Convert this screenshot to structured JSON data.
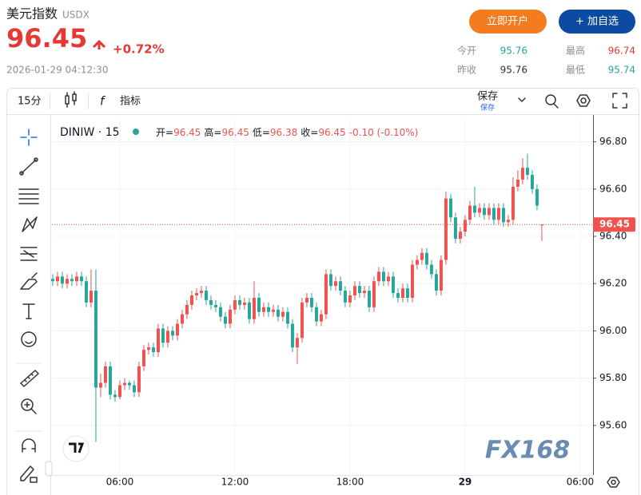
{
  "header": {
    "title": "美元指数",
    "symbol": "USDX",
    "price": 96.45,
    "change": "+0.72%",
    "datetime": "2026-01-29 04:12:30",
    "buttons": [
      "立即开户",
      "+ 加自选"
    ],
    "stats": [
      {
        "label": "今开",
        "value": 95.76
      },
      {
        "label": "最高",
        "value": 96.74
      },
      {
        "label": "昨收",
        "value": 95.76
      },
      {
        "label": "最低",
        "value": 95.74
      }
    ]
  },
  "toolbar": {
    "interval": "15分",
    "indicators": "指标",
    "save": "保存",
    "save_sub": "保存"
  },
  "chart_data": {
    "type": "candlestick",
    "up_color": "#ef5350",
    "down_color": "#26a69a",
    "grid": true,
    "watermark": "FX168",
    "legend": {
      "symbol": "DINIW · 15",
      "open_label": "开=",
      "high_label": "高=",
      "low_label": "低=",
      "close_label": "收=",
      "change": "-0.10 (-0.10%)"
    },
    "xlim": [
      2.46,
      30.67
    ],
    "xticks": [
      {
        "value": 6,
        "label": "06:00"
      },
      {
        "value": 12,
        "label": "12:00"
      },
      {
        "value": 18,
        "label": "18:00"
      },
      {
        "value": 24,
        "label": "29"
      },
      {
        "value": 30,
        "label": "06:00"
      }
    ],
    "ylim": [
      95.39,
      96.9
    ],
    "yticks": [
      {
        "value": 96.8,
        "label": "96.80"
      },
      {
        "value": 96.6,
        "label": "96.60"
      },
      {
        "value": 96.4,
        "label": "96.40"
      },
      {
        "value": 96.2,
        "label": "96.20"
      },
      {
        "value": 96,
        "label": "96.00"
      },
      {
        "value": 95.8,
        "label": "95.80"
      },
      {
        "value": 95.6,
        "label": "95.60"
      }
    ],
    "x": [
      2.5,
      2.75,
      3,
      3.25,
      3.5,
      3.75,
      4,
      4.25,
      4.5,
      4.75,
      5,
      5.25,
      5.5,
      5.75,
      6,
      6.25,
      6.5,
      6.75,
      7,
      7.25,
      7.5,
      7.75,
      8,
      8.25,
      8.5,
      8.75,
      9,
      9.25,
      9.5,
      9.75,
      10,
      10.25,
      10.5,
      10.75,
      11,
      11.25,
      11.5,
      11.75,
      12,
      12.25,
      12.5,
      12.75,
      13,
      13.25,
      13.5,
      13.75,
      14,
      14.25,
      14.5,
      14.75,
      15,
      15.25,
      15.5,
      15.75,
      16,
      16.25,
      16.5,
      16.75,
      17,
      17.25,
      17.5,
      17.75,
      18,
      18.25,
      18.5,
      18.75,
      19,
      19.25,
      19.5,
      19.75,
      20,
      20.25,
      20.5,
      20.75,
      21,
      21.25,
      21.5,
      21.75,
      22,
      22.25,
      22.5,
      22.75,
      23,
      23.25,
      23.5,
      23.75,
      24,
      24.25,
      24.5,
      24.75,
      25,
      25.25,
      25.5,
      25.75,
      26,
      26.25,
      26.5,
      26.75,
      27,
      27.25,
      27.5,
      27.75,
      28
    ],
    "open": [
      96.22,
      96.21,
      96.23,
      96.2,
      96.22,
      96.21,
      96.23,
      96.21,
      96.12,
      96.17,
      95.76,
      95.78,
      95.85,
      95.73,
      95.72,
      95.77,
      95.78,
      95.77,
      95.74,
      95.85,
      95.92,
      95.93,
      95.91,
      96.01,
      95.95,
      96.0,
      95.98,
      96.03,
      96.07,
      96.11,
      96.15,
      96.16,
      96.17,
      96.13,
      96.11,
      96.1,
      96.06,
      96.03,
      96.09,
      96.13,
      96.11,
      96.12,
      96.05,
      96.14,
      96.08,
      96.1,
      96.08,
      96.09,
      96.06,
      96.08,
      96.03,
      95.93,
      95.97,
      96.12,
      96.14,
      96.1,
      96.04,
      96.07,
      96.24,
      96.19,
      96.21,
      96.17,
      96.12,
      96.15,
      96.19,
      96.16,
      96.17,
      96.1,
      96.21,
      96.25,
      96.21,
      96.23,
      96.16,
      96.14,
      96.18,
      96.14,
      96.28,
      96.3,
      96.33,
      96.28,
      96.24,
      96.17,
      96.3,
      96.56,
      96.48,
      96.39,
      96.42,
      96.47,
      96.53,
      96.5,
      96.52,
      96.49,
      96.52,
      96.47,
      96.52,
      96.46,
      96.47,
      96.61,
      96.64,
      96.69,
      96.66,
      96.6,
      96.45
    ],
    "high": [
      96.24,
      96.25,
      96.25,
      96.24,
      96.24,
      96.25,
      96.25,
      96.23,
      96.26,
      96.26,
      95.82,
      95.87,
      95.87,
      95.75,
      95.79,
      95.8,
      95.79,
      95.79,
      95.87,
      95.94,
      95.95,
      95.95,
      96.03,
      96.03,
      96.02,
      96.02,
      96.05,
      96.09,
      96.13,
      96.17,
      96.18,
      96.19,
      96.19,
      96.15,
      96.13,
      96.12,
      96.08,
      96.11,
      96.15,
      96.15,
      96.14,
      96.14,
      96.21,
      96.16,
      96.12,
      96.12,
      96.11,
      96.11,
      96.1,
      96.1,
      96.05,
      95.99,
      96.14,
      96.16,
      96.16,
      96.12,
      96.09,
      96.26,
      96.26,
      96.23,
      96.23,
      96.19,
      96.17,
      96.21,
      96.21,
      96.19,
      96.19,
      96.23,
      96.27,
      96.27,
      96.25,
      96.25,
      96.18,
      96.2,
      96.2,
      96.3,
      96.32,
      96.35,
      96.35,
      96.3,
      96.26,
      96.32,
      96.59,
      96.58,
      96.5,
      96.44,
      96.49,
      96.55,
      96.61,
      96.54,
      96.54,
      96.54,
      96.54,
      96.54,
      96.54,
      96.49,
      96.65,
      96.68,
      96.73,
      96.75,
      96.68,
      96.62,
      96.45
    ],
    "low": [
      96.19,
      96.19,
      96.18,
      96.18,
      96.19,
      96.19,
      96.19,
      96.1,
      96.1,
      95.53,
      95.72,
      95.76,
      95.71,
      95.7,
      95.71,
      95.75,
      95.75,
      95.72,
      95.72,
      95.83,
      95.9,
      95.89,
      95.89,
      95.93,
      95.93,
      95.96,
      95.96,
      96.01,
      96.05,
      96.09,
      96.13,
      96.14,
      96.11,
      96.09,
      96.08,
      96.04,
      96.01,
      96.01,
      96.07,
      96.09,
      96.09,
      96.03,
      96.03,
      96.06,
      96.06,
      96.06,
      96.06,
      96.04,
      96.04,
      96.01,
      95.91,
      95.86,
      95.95,
      96.1,
      96.08,
      96.02,
      96.02,
      96.05,
      96.17,
      96.17,
      96.15,
      96.1,
      96.1,
      96.13,
      96.14,
      96.14,
      96.08,
      96.08,
      96.19,
      96.19,
      96.19,
      96.14,
      96.12,
      96.12,
      96.12,
      96.12,
      96.26,
      96.28,
      96.26,
      96.22,
      96.15,
      96.15,
      96.28,
      96.46,
      96.37,
      96.37,
      96.4,
      96.45,
      96.48,
      96.48,
      96.47,
      96.47,
      96.45,
      96.45,
      96.44,
      96.44,
      96.45,
      96.59,
      96.62,
      96.64,
      96.58,
      96.51,
      96.38
    ],
    "close": [
      96.21,
      96.23,
      96.2,
      96.22,
      96.21,
      96.23,
      96.21,
      96.12,
      96.17,
      95.76,
      95.78,
      95.85,
      95.73,
      95.72,
      95.77,
      95.78,
      95.77,
      95.74,
      95.85,
      95.92,
      95.93,
      95.91,
      96.01,
      95.95,
      96.0,
      95.98,
      96.03,
      96.07,
      96.11,
      96.15,
      96.16,
      96.17,
      96.13,
      96.11,
      96.1,
      96.06,
      96.03,
      96.09,
      96.13,
      96.11,
      96.12,
      96.05,
      96.14,
      96.08,
      96.1,
      96.08,
      96.09,
      96.06,
      96.08,
      96.03,
      95.93,
      95.97,
      96.12,
      96.14,
      96.1,
      96.04,
      96.07,
      96.24,
      96.19,
      96.21,
      96.17,
      96.12,
      96.15,
      96.19,
      96.16,
      96.17,
      96.1,
      96.21,
      96.25,
      96.21,
      96.23,
      96.16,
      96.14,
      96.18,
      96.14,
      96.28,
      96.3,
      96.33,
      96.28,
      96.24,
      96.17,
      96.3,
      96.56,
      96.48,
      96.39,
      96.42,
      96.47,
      96.53,
      96.5,
      96.52,
      96.49,
      96.52,
      96.47,
      96.52,
      96.46,
      96.47,
      96.61,
      96.64,
      96.69,
      96.66,
      96.6,
      96.53,
      96.45
    ]
  }
}
